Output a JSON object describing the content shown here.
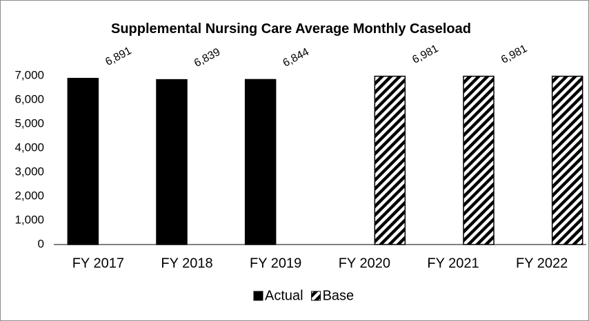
{
  "chart_data": {
    "type": "bar",
    "title": "Supplemental Nursing Care Average Monthly Caseload",
    "categories": [
      "FY 2017",
      "FY 2018",
      "FY 2019",
      "FY 2020",
      "FY 2021",
      "FY 2022"
    ],
    "series": [
      {
        "name": "Actual",
        "color": "#000000",
        "values": [
          6891,
          6839,
          6844,
          null,
          null,
          null
        ],
        "value_labels": [
          "6,891",
          "6,839",
          "6,844",
          null,
          null,
          null
        ]
      },
      {
        "name": "Base",
        "color": "#000000",
        "pattern": "diagonal-stripe",
        "values": [
          null,
          null,
          null,
          6981,
          6981,
          6981
        ],
        "value_labels": [
          null,
          null,
          null,
          "6,981",
          "6,981",
          "6,981"
        ]
      }
    ],
    "ylim": [
      0,
      7000
    ],
    "yticks": [
      0,
      {
        "value": 1000,
        "label": "1,000"
      },
      {
        "value": 2000,
        "label": "2,000"
      },
      {
        "value": 3000,
        "label": "3,000"
      },
      {
        "value": 4000,
        "label": "4,000"
      },
      {
        "value": 5000,
        "label": "5,000"
      },
      {
        "value": 6000,
        "label": "6,000"
      },
      {
        "value": 7000,
        "label": "7,000"
      }
    ],
    "grid": false,
    "legend": "bottom"
  }
}
